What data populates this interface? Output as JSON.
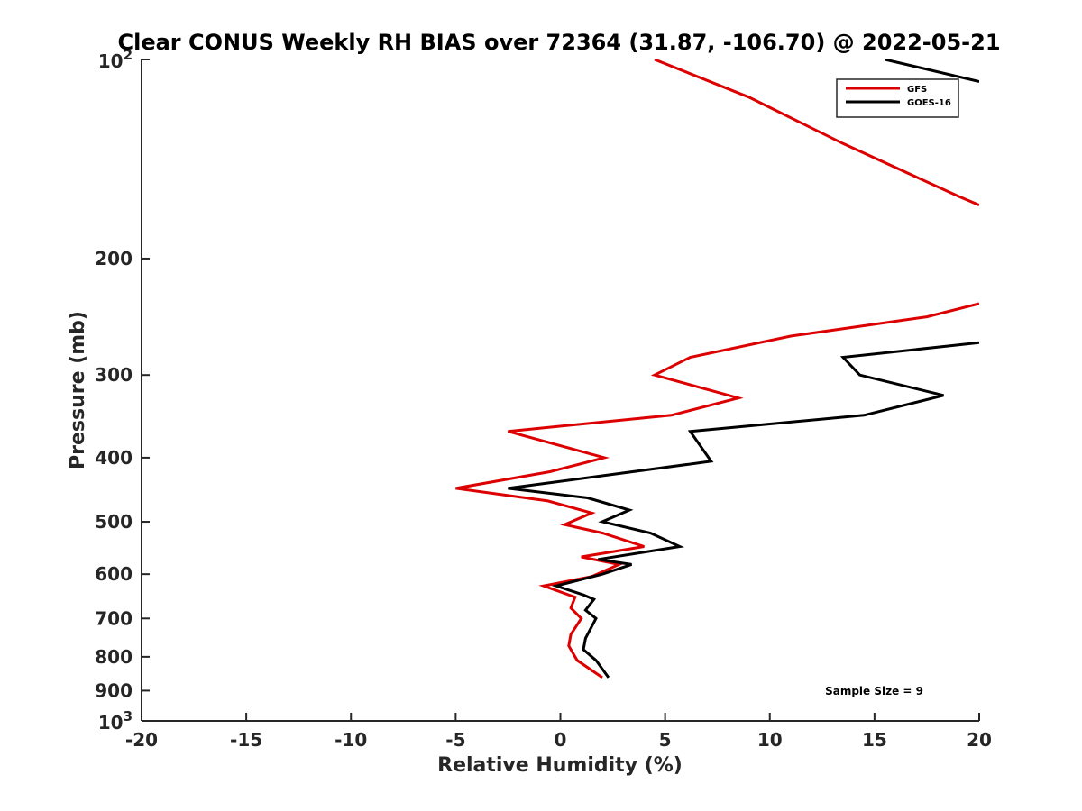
{
  "chart_data": {
    "type": "line",
    "title": "Clear CONUS Weekly RH BIAS over 72364 (31.87, -106.70) @ 2022-05-21",
    "xlabel": "Relative Humidity (%)",
    "ylabel": "Pressure (mb)",
    "xlim": [
      -20,
      20
    ],
    "ylim": [
      100,
      1000
    ],
    "y_scale": "log",
    "y_reversed": true,
    "x_ticks": [
      -20,
      -15,
      -10,
      -5,
      0,
      5,
      10,
      15,
      20
    ],
    "x_tick_labels": [
      "-20",
      "-15",
      "-10",
      "-5",
      "0",
      "5",
      "10",
      "15",
      "20"
    ],
    "y_ticks": [
      200,
      300,
      400,
      500,
      600,
      700,
      800,
      900
    ],
    "y_tick_labels": [
      "200",
      "300",
      "400",
      "500",
      "600",
      "700",
      "800",
      "900"
    ],
    "y_decade_labels": [
      {
        "value": 100,
        "base": "10",
        "exp": "2"
      },
      {
        "value": 1000,
        "base": "10",
        "exp": "3"
      }
    ],
    "legend_position": "top-right",
    "grid": false,
    "annotation": "Sample Size = 9",
    "series": [
      {
        "name": "GFS",
        "color": "#dd0000",
        "points": [
          {
            "x": 2.0,
            "y": 860
          },
          {
            "x": 0.8,
            "y": 810
          },
          {
            "x": 0.4,
            "y": 770
          },
          {
            "x": 0.5,
            "y": 740
          },
          {
            "x": 1.0,
            "y": 700
          },
          {
            "x": 0.5,
            "y": 675
          },
          {
            "x": 0.7,
            "y": 650
          },
          {
            "x": -0.8,
            "y": 625
          },
          {
            "x": 1.5,
            "y": 605
          },
          {
            "x": 2.8,
            "y": 580
          },
          {
            "x": 1.0,
            "y": 565
          },
          {
            "x": 4.0,
            "y": 545
          },
          {
            "x": 2.0,
            "y": 520
          },
          {
            "x": 0.2,
            "y": 505
          },
          {
            "x": 1.5,
            "y": 485
          },
          {
            "x": -0.6,
            "y": 465
          },
          {
            "x": -5.0,
            "y": 445
          },
          {
            "x": -0.5,
            "y": 420
          },
          {
            "x": 2.1,
            "y": 400
          },
          {
            "x": -2.5,
            "y": 365
          },
          {
            "x": 5.3,
            "y": 345
          },
          {
            "x": 8.5,
            "y": 325
          },
          {
            "x": 4.5,
            "y": 300
          },
          {
            "x": 6.2,
            "y": 282
          },
          {
            "x": 11.0,
            "y": 262
          },
          {
            "x": 17.5,
            "y": 245
          },
          {
            "x": 20.0,
            "y": 234
          }
        ]
      },
      {
        "name": "GOES-16",
        "color": "#000000",
        "points": [
          {
            "x": 2.3,
            "y": 860
          },
          {
            "x": 1.7,
            "y": 810
          },
          {
            "x": 1.1,
            "y": 780
          },
          {
            "x": 1.2,
            "y": 750
          },
          {
            "x": 1.7,
            "y": 700
          },
          {
            "x": 1.2,
            "y": 680
          },
          {
            "x": 1.6,
            "y": 655
          },
          {
            "x": 1.1,
            "y": 645
          },
          {
            "x": -0.2,
            "y": 625
          },
          {
            "x": 2.0,
            "y": 600
          },
          {
            "x": 3.4,
            "y": 580
          },
          {
            "x": 1.8,
            "y": 570
          },
          {
            "x": 5.7,
            "y": 545
          },
          {
            "x": 4.3,
            "y": 520
          },
          {
            "x": 2.0,
            "y": 500
          },
          {
            "x": 3.3,
            "y": 480
          },
          {
            "x": 1.3,
            "y": 460
          },
          {
            "x": -2.5,
            "y": 445
          },
          {
            "x": 7.2,
            "y": 405
          },
          {
            "x": 6.2,
            "y": 365
          },
          {
            "x": 14.5,
            "y": 345
          },
          {
            "x": 18.3,
            "y": 322
          },
          {
            "x": 14.3,
            "y": 300
          },
          {
            "x": 13.5,
            "y": 282
          },
          {
            "x": 20.0,
            "y": 268
          }
        ]
      },
      {
        "name": "GFS",
        "color": "#dd0000",
        "points": [
          {
            "x": 4.5,
            "y": 100
          },
          {
            "x": 9.0,
            "y": 114
          },
          {
            "x": 13.5,
            "y": 134
          },
          {
            "x": 19.0,
            "y": 161
          },
          {
            "x": 20.0,
            "y": 166
          }
        ]
      },
      {
        "name": "GOES-16",
        "color": "#000000",
        "points": [
          {
            "x": 15.5,
            "y": 100
          },
          {
            "x": 20.0,
            "y": 108
          }
        ]
      }
    ]
  }
}
